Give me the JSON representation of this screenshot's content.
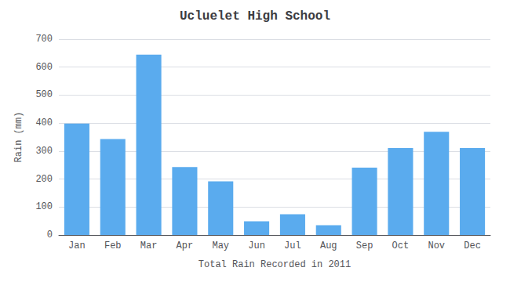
{
  "chart_data": {
    "type": "bar",
    "title": "Ucluelet High School",
    "xlabel": "Total Rain Recorded in 2011",
    "ylabel": "Rain (mm)",
    "categories": [
      "Jan",
      "Feb",
      "Mar",
      "Apr",
      "May",
      "Jun",
      "Jul",
      "Aug",
      "Sep",
      "Oct",
      "Nov",
      "Dec"
    ],
    "values": [
      398,
      343,
      645,
      243,
      192,
      49,
      74,
      35,
      241,
      311,
      369,
      311
    ],
    "color": "#5aabee",
    "ylim": [
      0,
      700
    ],
    "yticks": [
      0,
      100,
      200,
      300,
      400,
      500,
      600,
      700
    ],
    "grid": true
  }
}
